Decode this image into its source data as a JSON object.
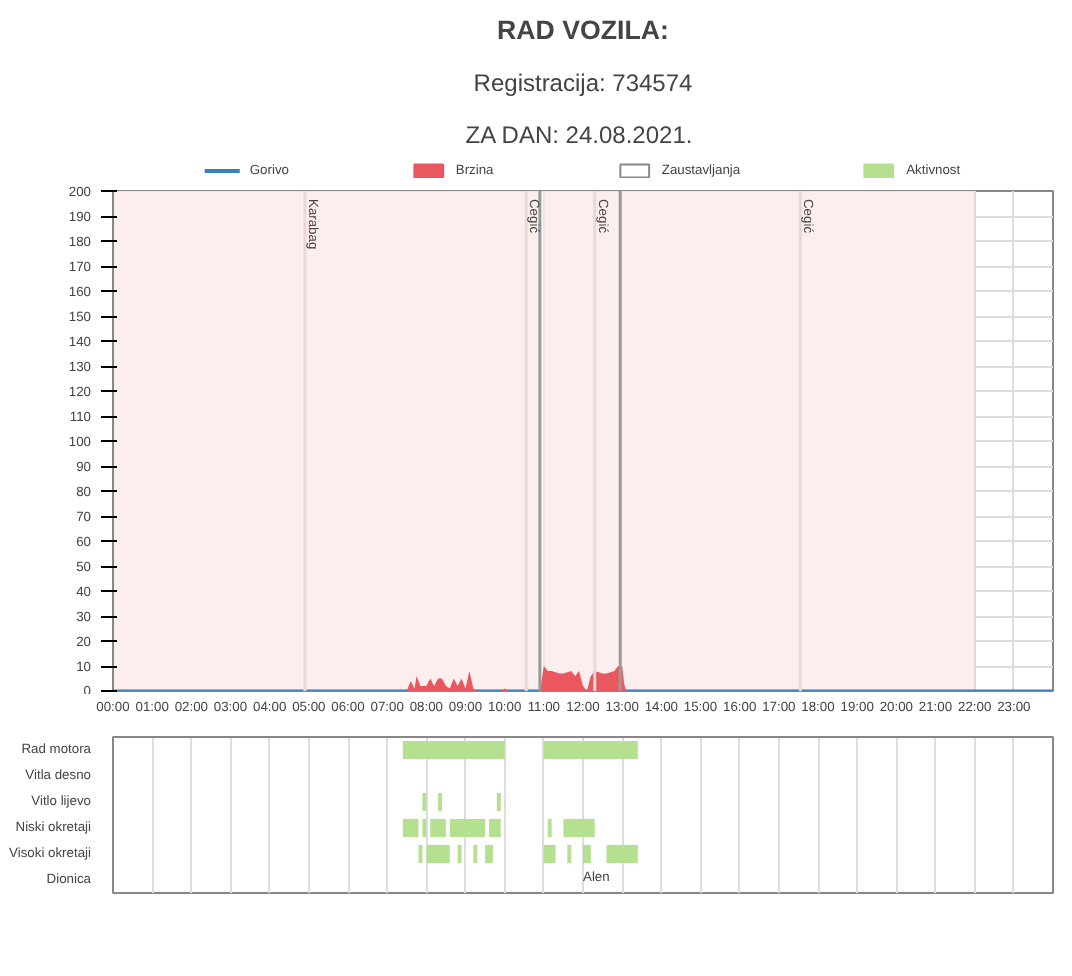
{
  "chart_data": [
    {
      "type": "area",
      "title": "RAD VOZILA:",
      "subtitle": "Registracija: 734574",
      "x": [
        0,
        7.5,
        7.6,
        7.7,
        7.75,
        7.85,
        7.9,
        8.0,
        8.1,
        8.2,
        8.3,
        8.4,
        8.5,
        8.6,
        8.7,
        8.8,
        8.9,
        9.0,
        9.1,
        9.2,
        9.3,
        9.9,
        10.0,
        10.1,
        10.9,
        11.0,
        11.1,
        11.2,
        11.4,
        11.5,
        11.7,
        11.8,
        11.9,
        12.0,
        12.1,
        12.2,
        12.3,
        12.5,
        12.6,
        12.8,
        12.9,
        13.0,
        13.05,
        13.1,
        24
      ],
      "series": [
        {
          "name": "Gorivo",
          "type": "line",
          "color": "#3a7ebf",
          "values": [
            null,
            null,
            null,
            null,
            null,
            null,
            null,
            null,
            null,
            null,
            null,
            null,
            null,
            null,
            null,
            null,
            null,
            null,
            null,
            null,
            null,
            null,
            null,
            null,
            null,
            null,
            null,
            null,
            null,
            null,
            null,
            null,
            null,
            null,
            null,
            null,
            null,
            null,
            null,
            null,
            null,
            null,
            null,
            null,
            null
          ]
        },
        {
          "name": "Brzina",
          "color": "#e8585e",
          "values": [
            0,
            0,
            4,
            1,
            6,
            2,
            2,
            2,
            5,
            2,
            5,
            5,
            2,
            1,
            5,
            2,
            5,
            1,
            8,
            1,
            0,
            0,
            1,
            0,
            0,
            10,
            8,
            8,
            7,
            7,
            8,
            6,
            8,
            2,
            0,
            6,
            8,
            7,
            7,
            8,
            10,
            10,
            3,
            0,
            0
          ]
        }
      ],
      "xlim": [
        0,
        24
      ],
      "xticks": [
        0,
        1,
        2,
        3,
        4,
        5,
        6,
        7,
        8,
        9,
        10,
        11,
        12,
        13,
        14,
        15,
        16,
        17,
        18,
        19,
        20,
        21,
        22,
        23
      ],
      "tick_labels": "y",
      "ylim": [
        0,
        200
      ],
      "yticks": [
        0,
        10,
        20,
        30,
        40,
        50,
        60,
        70,
        80,
        90,
        100,
        110,
        120,
        130,
        140,
        150,
        160,
        170,
        180,
        190,
        200
      ],
      "bands": [
        {
          "axis": "x",
          "from": 0,
          "to": 10.9,
          "color": "#fdeeee"
        },
        {
          "axis": "x",
          "from": 10.9,
          "to": 11.0,
          "color": "#ffffff",
          "label": "Zaustavljanja"
        },
        {
          "axis": "x",
          "from": 11.0,
          "to": 22,
          "color": "#fdeeee"
        }
      ],
      "ref_lines": [
        {
          "axis": "x",
          "value": 10.9,
          "color": "#999999"
        },
        {
          "axis": "x",
          "value": 12.95,
          "color": "#999999"
        },
        {
          "axis": "x",
          "value": 4.9,
          "color": "#ead8d8",
          "label": "Karabag"
        },
        {
          "axis": "x",
          "value": 10.55,
          "color": "#ead8d8",
          "label": "Cegić"
        },
        {
          "axis": "x",
          "value": 12.3,
          "color": "#ead8d8",
          "label": "Cegić"
        },
        {
          "axis": "x",
          "value": 17.55,
          "color": "#ead8d8",
          "label": "Cegić"
        }
      ],
      "annotations": [
        "ZA DAN:  24.08.2021."
      ],
      "grid": true,
      "legend": "top"
    },
    {
      "type": "bar",
      "orientation": "horizontal",
      "categories": [
        "Rad motora",
        "Vitla desno",
        "Vitlo lijevo",
        "Niski okretaji",
        "Visoki okretaji",
        "Dionica"
      ],
      "series": [
        {
          "name": "Aktivnost",
          "color": "#b5e08f",
          "base": [
            7.4,
            null,
            7.9,
            7.4,
            7.8,
            null
          ],
          "values": [
            2.6,
            null,
            0.1,
            0.4,
            0.1,
            null
          ]
        },
        {
          "color": "#b5e08f",
          "base": [
            11.0,
            null,
            8.3,
            7.9,
            8.0,
            null
          ],
          "values": [
            2.4,
            null,
            0.1,
            0.1,
            0.6,
            null
          ]
        },
        {
          "color": "#b5e08f",
          "base": [
            null,
            null,
            9.8,
            8.1,
            8.8,
            null
          ],
          "values": [
            null,
            null,
            0.1,
            0.4,
            0.1,
            null
          ]
        },
        {
          "color": "#b5e08f",
          "base": [
            null,
            null,
            null,
            8.6,
            9.2,
            null
          ],
          "values": [
            null,
            null,
            null,
            0.9,
            0.1,
            null
          ]
        },
        {
          "color": "#b5e08f",
          "base": [
            null,
            null,
            null,
            9.6,
            9.5,
            null
          ],
          "values": [
            null,
            null,
            null,
            0.3,
            0.2,
            null
          ]
        },
        {
          "color": "#b5e08f",
          "base": [
            null,
            null,
            null,
            11.1,
            11.0,
            null
          ],
          "values": [
            null,
            null,
            null,
            0.1,
            0.3,
            null
          ]
        },
        {
          "color": "#b5e08f",
          "base": [
            null,
            null,
            null,
            11.5,
            11.6,
            null
          ],
          "values": [
            null,
            null,
            null,
            0.8,
            0.1,
            null
          ]
        },
        {
          "color": "#b5e08f",
          "base": [
            null,
            null,
            null,
            null,
            12.0,
            null
          ],
          "values": [
            null,
            null,
            null,
            null,
            0.2,
            null
          ]
        },
        {
          "color": "#b5e08f",
          "base": [
            null,
            null,
            null,
            null,
            12.6,
            null
          ],
          "values": [
            null,
            null,
            null,
            null,
            0.8,
            null
          ]
        }
      ],
      "xlim": [
        0,
        24
      ],
      "xticks": [
        {
          "value": 0,
          "label": "00:00"
        },
        {
          "value": 1,
          "label": "01:00"
        },
        {
          "value": 2,
          "label": "02:00"
        },
        {
          "value": 3,
          "label": "03:00"
        },
        {
          "value": 4,
          "label": "04:00"
        },
        {
          "value": 5,
          "label": "05:00"
        },
        {
          "value": 6,
          "label": "06:00"
        },
        {
          "value": 7,
          "label": "07:00"
        },
        {
          "value": 8,
          "label": "08:00"
        },
        {
          "value": 9,
          "label": "09:00"
        },
        {
          "value": 10,
          "label": "10:00"
        },
        {
          "value": 11,
          "label": "11:00"
        },
        {
          "value": 12,
          "label": "12:00"
        },
        {
          "value": 13,
          "label": "13:00"
        },
        {
          "value": 14,
          "label": "14:00"
        },
        {
          "value": 15,
          "label": "15:00"
        },
        {
          "value": 16,
          "label": "16:00"
        },
        {
          "value": 17,
          "label": "17:00"
        },
        {
          "value": 18,
          "label": "18:00"
        },
        {
          "value": 19,
          "label": "19:00"
        },
        {
          "value": 20,
          "label": "20:00"
        },
        {
          "value": 21,
          "label": "21:00"
        },
        {
          "value": 22,
          "label": "22:00"
        },
        {
          "value": 23,
          "label": "23:00"
        }
      ],
      "grid": "x",
      "annotations": [
        "Alen"
      ]
    }
  ]
}
